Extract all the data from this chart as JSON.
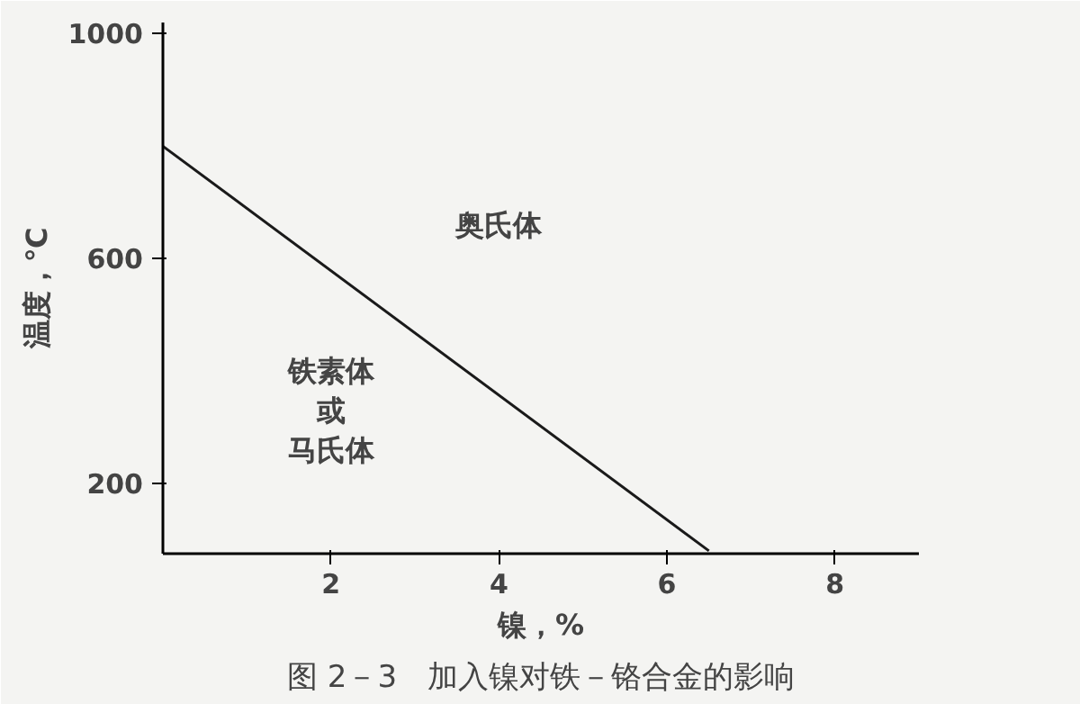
{
  "chart_data": {
    "type": "line",
    "title": "图 2－3　加入镍对铁－铬合金的影响",
    "xlabel": "镍，%",
    "ylabel": "温度，℃",
    "x": [
      0,
      6.5
    ],
    "series": [
      {
        "color": "#1a1a1a",
        "values": [
          800,
          80
        ]
      }
    ],
    "xlim": [
      0,
      9
    ],
    "ylim": [
      75,
      1020
    ],
    "xticks": [
      2,
      4,
      6,
      8
    ],
    "yticks": [
      200,
      600,
      1000
    ],
    "grid": false,
    "marker": "none",
    "line_style": "solid",
    "annotations": [
      "奥氏体",
      "铁素体或马氏体"
    ]
  }
}
